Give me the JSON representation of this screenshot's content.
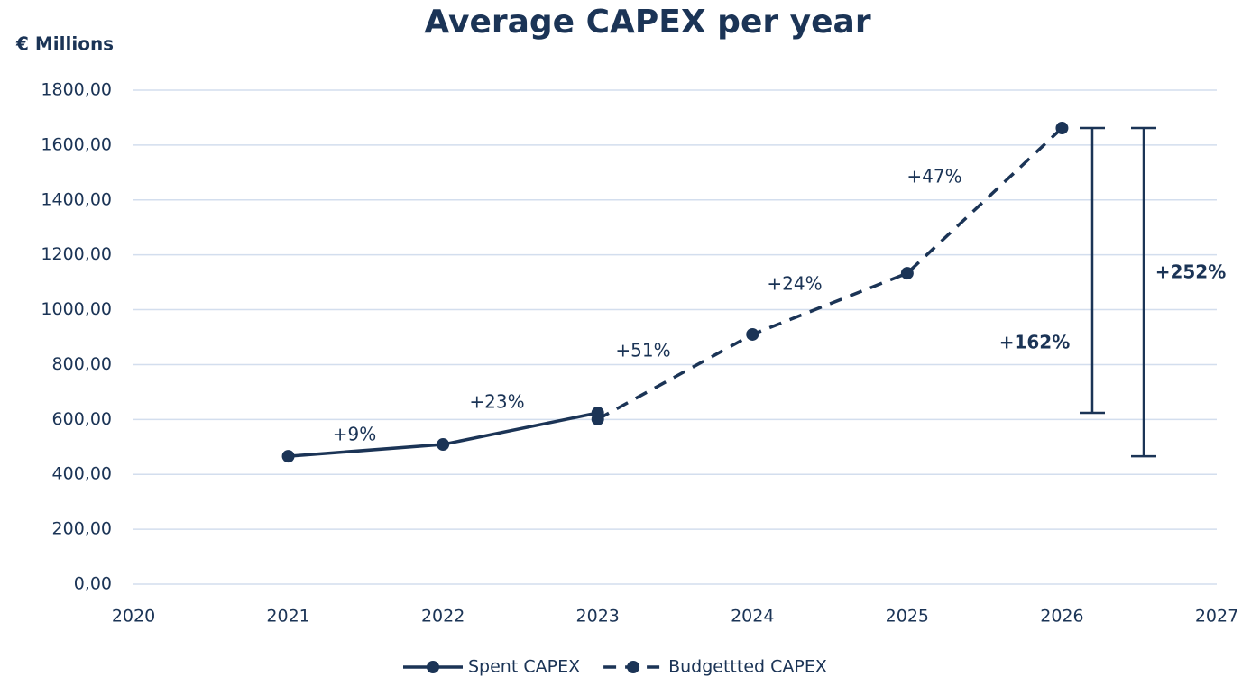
{
  "chart_data": {
    "type": "line",
    "title": "Average CAPEX per year",
    "y_label": "€ Millions",
    "xlim": [
      2020,
      2027
    ],
    "xticks": [
      2020,
      2021,
      2022,
      2023,
      2024,
      2025,
      2026,
      2027
    ],
    "ylim": [
      0,
      1800
    ],
    "yticks": [
      {
        "value": 0,
        "label": "0,00"
      },
      {
        "value": 200,
        "label": "200,00"
      },
      {
        "value": 400,
        "label": "400,00"
      },
      {
        "value": 600,
        "label": "600,00"
      },
      {
        "value": 800,
        "label": "800,00"
      },
      {
        "value": 1000,
        "label": "1000,00"
      },
      {
        "value": 1200,
        "label": "1200,00"
      },
      {
        "value": 1400,
        "label": "1400,00"
      },
      {
        "value": 1600,
        "label": "1600,00"
      },
      {
        "value": 1800,
        "label": "1800,00"
      }
    ],
    "grid": true,
    "legend": "bottom",
    "series": [
      {
        "name": "Spent CAPEX",
        "color": "#1b3456",
        "dash": false,
        "x": [
          2021,
          2022,
          2023
        ],
        "values": [
          466,
          509,
          624
        ]
      },
      {
        "name": "Budgettted CAPEX",
        "color": "#1b3456",
        "dash": true,
        "x": [
          2023,
          2024,
          2025,
          2026
        ],
        "values": [
          601,
          910,
          1133,
          1662
        ]
      }
    ],
    "annotations": [
      "+9%",
      "+23%",
      "+51%",
      "+24%",
      "+47%",
      "+162%",
      "+252%"
    ]
  }
}
